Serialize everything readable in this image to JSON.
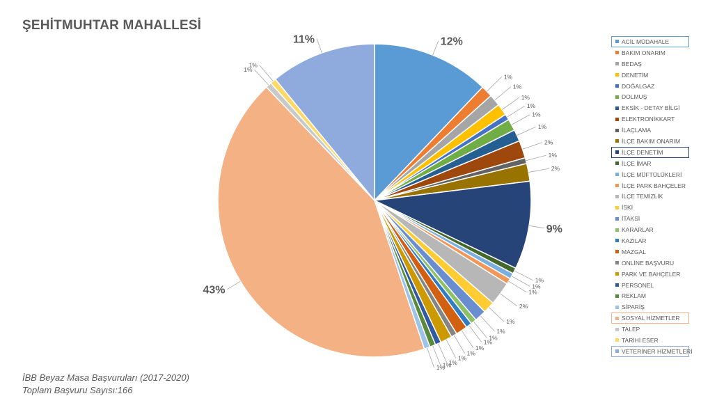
{
  "title": "ŞEHİTMUHTAR MAHALLESİ",
  "footnote": {
    "line1": "İBB Beyaz Masa Başvuruları (2017-2020)",
    "line2": "Toplam Başvuru Sayısı:166"
  },
  "chart_data": {
    "type": "pie",
    "title": "ŞEHİTMUHTAR MAHALLESİ",
    "start_angle_deg": 0,
    "direction": "clockwise",
    "legend_position": "right",
    "slices": [
      {
        "name": "ACİL MÜDAHALE",
        "value": 20,
        "label": "12%",
        "color": "#5B9BD5"
      },
      {
        "name": "BAKIM ONARIM",
        "value": 2,
        "label": "1%",
        "color": "#ED7D31"
      },
      {
        "name": "BEDAŞ",
        "value": 2,
        "label": "1%",
        "color": "#A5A5A5"
      },
      {
        "name": "DENETİM",
        "value": 2,
        "label": "1%",
        "color": "#FFC000"
      },
      {
        "name": "DOĞALGAZ",
        "value": 1,
        "label": "1%",
        "color": "#4472C4"
      },
      {
        "name": "DOLMUŞ",
        "value": 2,
        "label": "1%",
        "color": "#70AD47"
      },
      {
        "name": "EKSİK - DETAY BİLGİ",
        "value": 2,
        "label": "1%",
        "color": "#255E91"
      },
      {
        "name": "ELEKTRONİKKART",
        "value": 3,
        "label": "2%",
        "color": "#9E480E"
      },
      {
        "name": "İLAÇLAMA",
        "value": 1,
        "label": "1%",
        "color": "#636363"
      },
      {
        "name": "İLÇE BAKIM ONARIM",
        "value": 3,
        "label": "2%",
        "color": "#997300"
      },
      {
        "name": "İLÇE DENETİM",
        "value": 15,
        "label": "9%",
        "color": "#264478"
      },
      {
        "name": "İLÇE İMAR",
        "value": 1,
        "label": "1%",
        "color": "#43682B"
      },
      {
        "name": "İLÇE MÜFTÜLÜKLERİ",
        "value": 1,
        "label": "1%",
        "color": "#7CAFDD"
      },
      {
        "name": "İLÇE PARK BAHÇELER",
        "value": 1,
        "label": "1%",
        "color": "#F1975A"
      },
      {
        "name": "İLÇE TEMİZLİK",
        "value": 4,
        "label": "2%",
        "color": "#B7B7B7"
      },
      {
        "name": "İSKİ",
        "value": 2,
        "label": "1%",
        "color": "#FFCD33"
      },
      {
        "name": "İTAKSİ",
        "value": 2,
        "label": "1%",
        "color": "#698ED0"
      },
      {
        "name": "KARARLAR",
        "value": 1,
        "label": "1%",
        "color": "#8CC168"
      },
      {
        "name": "KAZILAR",
        "value": 1,
        "label": "1%",
        "color": "#327DC2"
      },
      {
        "name": "MAZGAL",
        "value": 2,
        "label": "1%",
        "color": "#D26012"
      },
      {
        "name": "ONLİNE BAŞVURU",
        "value": 1,
        "label": "1%",
        "color": "#848484"
      },
      {
        "name": "PARK VE BAHÇELER",
        "value": 2,
        "label": "1%",
        "color": "#CC9A00"
      },
      {
        "name": "PERSONEL",
        "value": 1,
        "label": "1%",
        "color": "#335AA1"
      },
      {
        "name": "REKLAM",
        "value": 1,
        "label": "1%",
        "color": "#5A8A39"
      },
      {
        "name": "SİPARİŞ",
        "value": 1,
        "label": "1%",
        "color": "#9DC3E6"
      },
      {
        "name": "SOSYAL HİZMETLER",
        "value": 71,
        "label": "43%",
        "color": "#F4B183"
      },
      {
        "name": "TALEP",
        "value": 1,
        "label": "1%",
        "color": "#C9C9C9"
      },
      {
        "name": "TARİHİ ESER",
        "value": 1,
        "label": "1%",
        "color": "#FFD966"
      },
      {
        "name": "VETERİNER HİZMETLERİ",
        "value": 18,
        "label": "11%",
        "color": "#8FAADC"
      }
    ],
    "legend_highlights": [
      {
        "name": "ACİL MÜDAHALE",
        "color": "#5B9BD5"
      },
      {
        "name": "İLÇE DENETİM",
        "color": "#264478"
      },
      {
        "name": "SOSYAL HİZMETLER",
        "color": "#F4B183"
      },
      {
        "name": "VETERİNER HİZMETLERİ",
        "color": "#8FAADC"
      }
    ]
  }
}
